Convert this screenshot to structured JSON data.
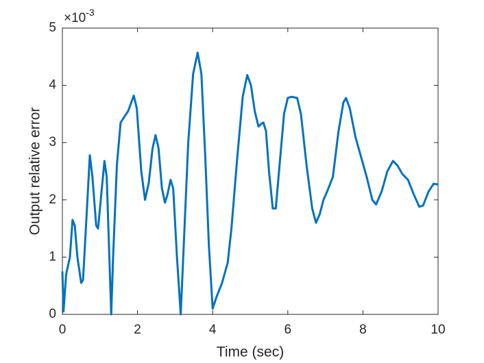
{
  "chart_data": {
    "type": "line",
    "xlabel": "Time (sec)",
    "ylabel": "Output relative error",
    "y_multiplier": {
      "base": "×10",
      "exponent": "-3"
    },
    "x": [
      0,
      0.03,
      0.1,
      0.2,
      0.27,
      0.33,
      0.4,
      0.5,
      0.55,
      0.65,
      0.73,
      0.8,
      0.9,
      0.95,
      1.05,
      1.12,
      1.18,
      1.25,
      1.3,
      1.35,
      1.45,
      1.55,
      1.65,
      1.75,
      1.9,
      1.98,
      2.1,
      2.2,
      2.3,
      2.4,
      2.48,
      2.56,
      2.65,
      2.73,
      2.8,
      2.88,
      2.95,
      3.05,
      3.15,
      3.25,
      3.35,
      3.48,
      3.6,
      3.7,
      3.8,
      3.9,
      4.0,
      4.1,
      4.25,
      4.4,
      4.5,
      4.65,
      4.8,
      4.92,
      5.02,
      5.12,
      5.22,
      5.3,
      5.35,
      5.42,
      5.5,
      5.6,
      5.68,
      5.78,
      5.9,
      6.0,
      6.1,
      6.25,
      6.35,
      6.5,
      6.65,
      6.75,
      6.85,
      6.95,
      7.05,
      7.2,
      7.35,
      7.48,
      7.55,
      7.65,
      7.8,
      7.95,
      8.1,
      8.25,
      8.35,
      8.5,
      8.65,
      8.8,
      8.92,
      9.05,
      9.2,
      9.35,
      9.5,
      9.6,
      9.75,
      9.88,
      10
    ],
    "series": [
      {
        "color": "#0072bd",
        "values": [
          0.75,
          0.05,
          0.7,
          1.0,
          1.65,
          1.55,
          1.0,
          0.55,
          0.6,
          1.8,
          2.78,
          2.4,
          1.55,
          1.5,
          2.2,
          2.68,
          2.4,
          1.0,
          0.0,
          1.0,
          2.6,
          3.35,
          3.45,
          3.55,
          3.82,
          3.6,
          2.5,
          2.0,
          2.3,
          2.9,
          3.13,
          2.9,
          2.2,
          1.95,
          2.1,
          2.35,
          2.2,
          1.0,
          0.0,
          1.5,
          3.0,
          4.2,
          4.57,
          4.2,
          2.8,
          1.2,
          0.1,
          0.3,
          0.55,
          0.9,
          1.5,
          2.7,
          3.8,
          4.18,
          4.0,
          3.55,
          3.28,
          3.33,
          3.35,
          3.2,
          2.5,
          1.85,
          1.85,
          2.6,
          3.5,
          3.78,
          3.8,
          3.78,
          3.5,
          2.6,
          1.85,
          1.6,
          1.75,
          2.0,
          2.15,
          2.4,
          3.2,
          3.7,
          3.78,
          3.6,
          3.1,
          2.75,
          2.4,
          2.0,
          1.92,
          2.15,
          2.5,
          2.68,
          2.6,
          2.45,
          2.35,
          2.1,
          1.88,
          1.9,
          2.15,
          2.28,
          2.27
        ]
      }
    ],
    "xlim": [
      0,
      10
    ],
    "xticks": [
      0,
      2,
      4,
      6,
      8,
      10
    ],
    "ylim": [
      0,
      5
    ],
    "yticks": [
      0,
      1,
      2,
      3,
      4,
      5
    ]
  }
}
